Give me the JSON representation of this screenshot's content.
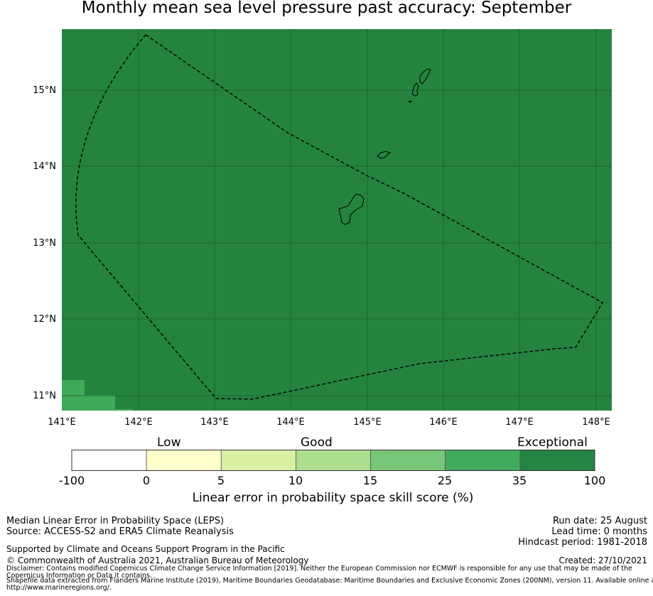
{
  "title": "Monthly mean sea level pressure past accuracy: September",
  "map": {
    "lat_labels": [
      "15°N",
      "14°N",
      "13°N",
      "12°N",
      "11°N"
    ],
    "lon_labels": [
      "141°E",
      "142°E",
      "143°E",
      "144°E",
      "145°E",
      "146°E",
      "147°E",
      "148°E"
    ],
    "colors": {
      "exceptional": "#24843f",
      "high": "#3faa5a",
      "coast": "#000000"
    }
  },
  "colorbar": {
    "category_labels": [
      "Low",
      "Good",
      "Exceptional"
    ],
    "ticks": [
      "-100",
      "0",
      "5",
      "10",
      "15",
      "25",
      "35",
      "100"
    ],
    "colors": [
      "#ffffff",
      "#ffffcc",
      "#d9f0a3",
      "#addd8e",
      "#78c679",
      "#41ab5d",
      "#238443"
    ],
    "title": "Linear error in probability space skill score (%)"
  },
  "footer": {
    "left_line1": "Median Linear Error in Probability Space (LEPS)",
    "left_line2": "Source: ACCESS-S2 and ERA5 Climate Reanalysis",
    "supported": "Supported by Climate and Oceans Support Program in the Pacific",
    "copyright": "© Commonwealth of Australia 2021, Australian Bureau of Meteorology",
    "disclaimer_1": "Disclaimer: Contains modified Copernicus Climate Change Service Information [2019]. Neither the European Commission nor ECMWF is responsible for any use that may be made of the",
    "disclaimer_2": "Copernicus Information or Data it contains.",
    "shapefile_1": "Shapefile data extracted from Flanders Marine Institute (2019), Maritime Boundaries Geodatabase: Maritime Boundaries and Exclusive Economic Zones (200NM), version 11. Available online at",
    "shapefile_2": "http://www.marineregions.org/.",
    "run_date": "Run date: 25 August",
    "lead_time": "Lead time: 0 months",
    "hindcast": "Hindcast period: 1981-2018",
    "created": "Created: 27/10/2021"
  }
}
